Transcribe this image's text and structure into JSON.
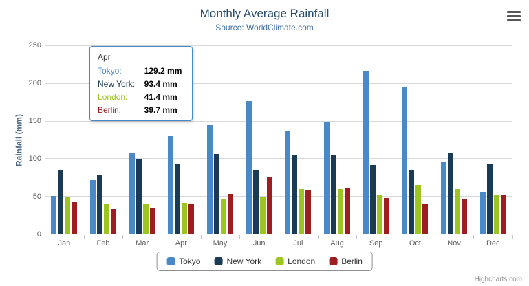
{
  "header": {
    "title": "Monthly Average Rainfall",
    "subtitle": "Source: WorldClimate.com"
  },
  "exporting_menu": {
    "icon": "hamburger-menu-icon"
  },
  "colors": {
    "title": "#274b6d",
    "subtitle": "#4572a7",
    "axis_title": "#4a6785",
    "tooltip_border": "#4a89c8"
  },
  "chart_data": {
    "type": "bar",
    "title": "Monthly Average Rainfall",
    "subtitle": "Source: WorldClimate.com",
    "categories": [
      "Jan",
      "Feb",
      "Mar",
      "Apr",
      "May",
      "Jun",
      "Jul",
      "Aug",
      "Sep",
      "Oct",
      "Nov",
      "Dec"
    ],
    "series": [
      {
        "name": "Tokyo",
        "color": "#4a89c8",
        "values": [
          49.9,
          71.5,
          106.4,
          129.2,
          144.0,
          176.0,
          135.6,
          148.5,
          216.4,
          194.1,
          95.6,
          54.4
        ]
      },
      {
        "name": "New York",
        "color": "#1b3a54",
        "values": [
          83.6,
          78.8,
          98.5,
          93.4,
          106.0,
          84.5,
          105.0,
          104.3,
          91.2,
          83.5,
          106.6,
          92.3
        ]
      },
      {
        "name": "London",
        "color": "#9dc522",
        "values": [
          48.9,
          38.8,
          39.3,
          41.4,
          47.0,
          48.3,
          59.0,
          59.6,
          52.4,
          65.2,
          59.3,
          51.2
        ]
      },
      {
        "name": "Berlin",
        "color": "#9d1d20",
        "values": [
          42.4,
          33.2,
          34.5,
          39.7,
          52.6,
          75.5,
          57.4,
          60.4,
          47.6,
          39.1,
          46.8,
          51.1
        ]
      }
    ],
    "xlabel": "",
    "ylabel": "Rainfall (mm)",
    "ylim": [
      0,
      250
    ],
    "yticks": [
      0,
      50,
      100,
      150,
      200,
      250
    ],
    "grid": true,
    "legend_position": "bottom",
    "unit": "mm"
  },
  "tooltip": {
    "category": "Apr",
    "rows": [
      {
        "label": "Tokyo:",
        "value": "129.2 mm"
      },
      {
        "label": "New York:",
        "value": "93.4 mm"
      },
      {
        "label": "London:",
        "value": "41.4 mm"
      },
      {
        "label": "Berlin:",
        "value": "39.7 mm"
      }
    ]
  },
  "credits": {
    "label": "Highcharts.com"
  }
}
